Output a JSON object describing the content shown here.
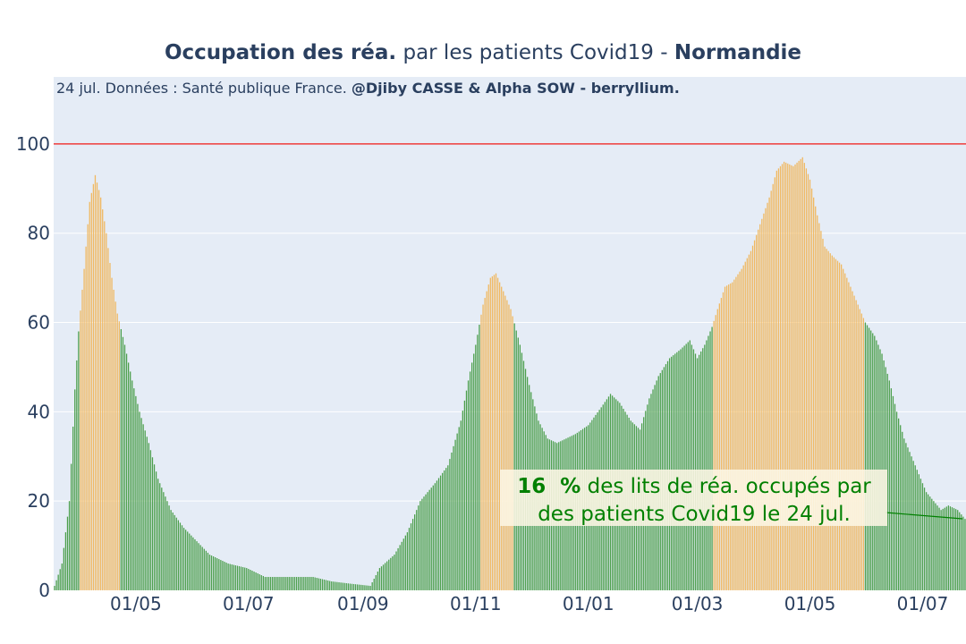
{
  "title": {
    "bold_part": "Occupation des réa.",
    "middle_part": " par les patients Covid19 - ",
    "region": "Normandie"
  },
  "subtitle": {
    "text": "24 jul. Données : Santé publique France. ",
    "bold_part": "@Djiby CASSE & Alpha SOW - berryllium."
  },
  "annotation": {
    "value_part": "16  %",
    "line1_rest": " des lits de réa. occupés par",
    "line2": "des patients Covid19 le 24 jul."
  },
  "colors": {
    "plot_bg": "#e5ecf6",
    "grid": "#ffffff",
    "below_threshold": "#4c9f4c",
    "above_threshold": "#f0b860",
    "capacity_line": "#ef3b3b",
    "annotation_text": "#008000",
    "annotation_bg": "#fcf6e4"
  },
  "chart_data": {
    "type": "bar",
    "title": "Occupation des réa. par les patients Covid19 - Normandie",
    "ylabel": "",
    "xlabel": "",
    "ylim": [
      0,
      115
    ],
    "x_range": [
      "2020-03-18",
      "2021-07-24"
    ],
    "yticks": [
      0,
      20,
      40,
      60,
      80,
      100
    ],
    "xticks": [
      {
        "date": "2020-05-01",
        "label": "01/05"
      },
      {
        "date": "2020-07-01",
        "label": "01/07"
      },
      {
        "date": "2020-09-01",
        "label": "01/09"
      },
      {
        "date": "2020-11-01",
        "label": "01/11"
      },
      {
        "date": "2021-01-01",
        "label": "01/01"
      },
      {
        "date": "2021-03-01",
        "label": "01/03"
      },
      {
        "date": "2021-05-01",
        "label": "01/05"
      },
      {
        "date": "2021-07-01",
        "label": "01/07"
      }
    ],
    "reference_line": 100,
    "highlight_threshold": 60,
    "series_anchor_points": [
      [
        "2020-03-18",
        1
      ],
      [
        "2020-03-22",
        6
      ],
      [
        "2020-03-26",
        20
      ],
      [
        "2020-03-29",
        45
      ],
      [
        "2020-03-31",
        58
      ],
      [
        "2020-04-03",
        72
      ],
      [
        "2020-04-06",
        87
      ],
      [
        "2020-04-09",
        93
      ],
      [
        "2020-04-12",
        88
      ],
      [
        "2020-04-15",
        80
      ],
      [
        "2020-04-18",
        70
      ],
      [
        "2020-04-21",
        62
      ],
      [
        "2020-04-25",
        55
      ],
      [
        "2020-04-29",
        47
      ],
      [
        "2020-05-03",
        40
      ],
      [
        "2020-05-08",
        33
      ],
      [
        "2020-05-13",
        25
      ],
      [
        "2020-05-20",
        18
      ],
      [
        "2020-05-27",
        14
      ],
      [
        "2020-06-03",
        11
      ],
      [
        "2020-06-10",
        8
      ],
      [
        "2020-06-20",
        6
      ],
      [
        "2020-06-30",
        5
      ],
      [
        "2020-07-10",
        3
      ],
      [
        "2020-07-25",
        3
      ],
      [
        "2020-08-05",
        3
      ],
      [
        "2020-08-15",
        2
      ],
      [
        "2020-08-25",
        1.5
      ],
      [
        "2020-09-05",
        1
      ],
      [
        "2020-09-10",
        5
      ],
      [
        "2020-09-18",
        8
      ],
      [
        "2020-09-25",
        13
      ],
      [
        "2020-10-02",
        20
      ],
      [
        "2020-10-10",
        24
      ],
      [
        "2020-10-17",
        28
      ],
      [
        "2020-10-24",
        38
      ],
      [
        "2020-10-28",
        47
      ],
      [
        "2020-11-01",
        55
      ],
      [
        "2020-11-05",
        64
      ],
      [
        "2020-11-09",
        70
      ],
      [
        "2020-11-12",
        71
      ],
      [
        "2020-11-15",
        68
      ],
      [
        "2020-11-20",
        63
      ],
      [
        "2020-11-25",
        55
      ],
      [
        "2020-11-30",
        46
      ],
      [
        "2020-12-05",
        38
      ],
      [
        "2020-12-10",
        34
      ],
      [
        "2020-12-15",
        33
      ],
      [
        "2020-12-20",
        34
      ],
      [
        "2020-12-25",
        35
      ],
      [
        "2021-01-01",
        37
      ],
      [
        "2021-01-08",
        41
      ],
      [
        "2021-01-13",
        44
      ],
      [
        "2021-01-18",
        42
      ],
      [
        "2021-01-24",
        38
      ],
      [
        "2021-01-29",
        36
      ],
      [
        "2021-02-03",
        43
      ],
      [
        "2021-02-08",
        48
      ],
      [
        "2021-02-14",
        52
      ],
      [
        "2021-02-20",
        54
      ],
      [
        "2021-02-25",
        56
      ],
      [
        "2021-03-01",
        52
      ],
      [
        "2021-03-05",
        55
      ],
      [
        "2021-03-09",
        59
      ],
      [
        "2021-03-12",
        63
      ],
      [
        "2021-03-16",
        68
      ],
      [
        "2021-03-20",
        69
      ],
      [
        "2021-03-25",
        72
      ],
      [
        "2021-03-30",
        76
      ],
      [
        "2021-04-04",
        82
      ],
      [
        "2021-04-09",
        88
      ],
      [
        "2021-04-13",
        94
      ],
      [
        "2021-04-17",
        96
      ],
      [
        "2021-04-22",
        95
      ],
      [
        "2021-04-27",
        97
      ],
      [
        "2021-05-01",
        92
      ],
      [
        "2021-05-05",
        84
      ],
      [
        "2021-05-09",
        77
      ],
      [
        "2021-05-13",
        75
      ],
      [
        "2021-05-18",
        73
      ],
      [
        "2021-05-23",
        68
      ],
      [
        "2021-05-27",
        64
      ],
      [
        "2021-05-31",
        60
      ],
      [
        "2021-06-05",
        57
      ],
      [
        "2021-06-09",
        53
      ],
      [
        "2021-06-13",
        47
      ],
      [
        "2021-06-17",
        40
      ],
      [
        "2021-06-21",
        34
      ],
      [
        "2021-06-25",
        30
      ],
      [
        "2021-06-29",
        26
      ],
      [
        "2021-07-03",
        22
      ],
      [
        "2021-07-07",
        20
      ],
      [
        "2021-07-11",
        18
      ],
      [
        "2021-07-15",
        19
      ],
      [
        "2021-07-20",
        18
      ],
      [
        "2021-07-24",
        16
      ]
    ]
  }
}
